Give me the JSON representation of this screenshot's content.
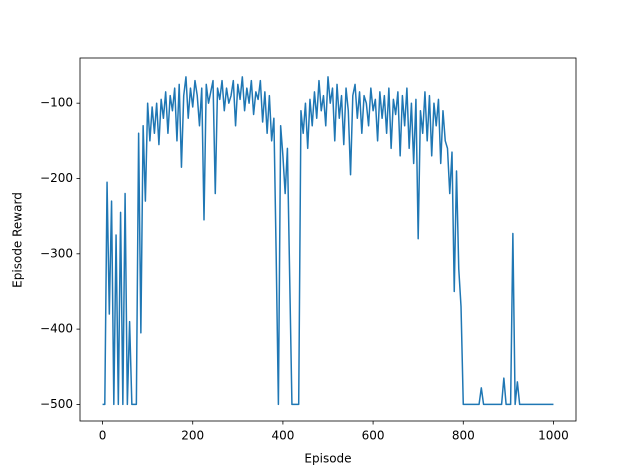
{
  "chart_data": {
    "type": "line",
    "xlabel": "Episode",
    "ylabel": "Episode Reward",
    "color": "#1f77b4",
    "x": [
      0,
      5,
      10,
      15,
      20,
      25,
      30,
      35,
      40,
      45,
      50,
      55,
      60,
      65,
      70,
      75,
      80,
      85,
      90,
      95,
      100,
      105,
      110,
      115,
      120,
      125,
      130,
      135,
      140,
      145,
      150,
      155,
      160,
      165,
      170,
      175,
      180,
      185,
      190,
      195,
      200,
      205,
      210,
      215,
      220,
      225,
      230,
      235,
      240,
      245,
      250,
      255,
      260,
      265,
      270,
      275,
      280,
      285,
      290,
      295,
      300,
      305,
      310,
      315,
      320,
      325,
      330,
      335,
      340,
      345,
      350,
      355,
      360,
      365,
      370,
      375,
      380,
      385,
      390,
      395,
      400,
      405,
      410,
      415,
      420,
      425,
      430,
      435,
      440,
      445,
      450,
      455,
      460,
      465,
      470,
      475,
      480,
      485,
      490,
      495,
      500,
      505,
      510,
      515,
      520,
      525,
      530,
      535,
      540,
      545,
      550,
      555,
      560,
      565,
      570,
      575,
      580,
      585,
      590,
      595,
      600,
      605,
      610,
      615,
      620,
      625,
      630,
      635,
      640,
      645,
      650,
      655,
      660,
      665,
      670,
      675,
      680,
      685,
      690,
      695,
      700,
      705,
      710,
      715,
      720,
      725,
      730,
      735,
      740,
      745,
      750,
      755,
      760,
      765,
      770,
      775,
      780,
      785,
      790,
      795,
      800,
      805,
      810,
      815,
      820,
      825,
      830,
      835,
      840,
      845,
      850,
      855,
      860,
      865,
      870,
      875,
      880,
      885,
      890,
      895,
      900,
      905,
      910,
      915,
      920,
      925,
      930,
      935,
      940,
      945,
      950,
      955,
      960,
      965,
      970,
      975,
      980,
      985,
      990,
      995,
      1000
    ],
    "values": [
      -500,
      -500,
      -205,
      -380,
      -230,
      -500,
      -275,
      -500,
      -245,
      -500,
      -220,
      -500,
      -390,
      -500,
      -500,
      -500,
      -140,
      -405,
      -130,
      -230,
      -100,
      -150,
      -105,
      -140,
      -100,
      -155,
      -95,
      -120,
      -85,
      -140,
      -90,
      -110,
      -80,
      -150,
      -75,
      -185,
      -90,
      -65,
      -120,
      -80,
      -105,
      -70,
      -90,
      -130,
      -80,
      -255,
      -75,
      -100,
      -85,
      -70,
      -220,
      -80,
      -95,
      -70,
      -110,
      -80,
      -100,
      -90,
      -70,
      -130,
      -75,
      -95,
      -65,
      -110,
      -80,
      -100,
      -70,
      -115,
      -85,
      -95,
      -70,
      -125,
      -85,
      -140,
      -90,
      -150,
      -120,
      -300,
      -500,
      -130,
      -170,
      -220,
      -160,
      -330,
      -500,
      -500,
      -500,
      -500,
      -110,
      -140,
      -100,
      -160,
      -95,
      -130,
      -85,
      -120,
      -70,
      -110,
      -90,
      -130,
      -65,
      -100,
      -80,
      -150,
      -75,
      -120,
      -90,
      -155,
      -80,
      -110,
      -195,
      -90,
      -75,
      -120,
      -85,
      -140,
      -90,
      -100,
      -130,
      -80,
      -110,
      -95,
      -150,
      -85,
      -120,
      -90,
      -140,
      -80,
      -160,
      -95,
      -115,
      -85,
      -170,
      -90,
      -130,
      -80,
      -160,
      -100,
      -180,
      -95,
      -280,
      -110,
      -140,
      -85,
      -150,
      -90,
      -170,
      -100,
      -130,
      -95,
      -180,
      -110,
      -150,
      -160,
      -220,
      -165,
      -350,
      -190,
      -320,
      -370,
      -500,
      -500,
      -500,
      -500,
      -500,
      -500,
      -500,
      -500,
      -478,
      -500,
      -500,
      -500,
      -500,
      -500,
      -500,
      -500,
      -500,
      -500,
      -465,
      -500,
      -500,
      -500,
      -273,
      -500,
      -470,
      -500,
      -500,
      -500,
      -500,
      -500,
      -500,
      -500,
      -500,
      -500,
      -500,
      -500,
      -500,
      -500,
      -500,
      -500,
      -500
    ],
    "xlim": [
      -50,
      1050
    ],
    "ylim": [
      -522,
      -40
    ],
    "xticks": [
      0,
      200,
      400,
      600,
      800,
      1000
    ],
    "yticks": [
      {
        "value": -500,
        "label": "−500"
      },
      {
        "value": -400,
        "label": "−400"
      },
      {
        "value": -300,
        "label": "−300"
      },
      {
        "value": -200,
        "label": "−200"
      },
      {
        "value": -100,
        "label": "−100"
      }
    ]
  }
}
